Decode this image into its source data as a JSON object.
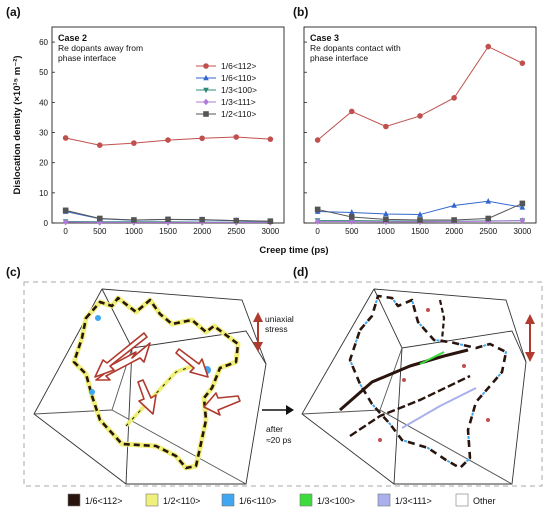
{
  "panels": {
    "a": {
      "label": "(a)",
      "title": "Case 2",
      "subtitle_lines": [
        "Re dopants away from",
        "phase interface"
      ]
    },
    "b": {
      "label": "(b)",
      "title": "Case 3",
      "subtitle_lines": [
        "Re dopants contact with",
        "phase interface"
      ]
    },
    "c": {
      "label": "(c)"
    },
    "d": {
      "label": "(d)"
    }
  },
  "colors": {
    "s1": "#c0504d",
    "s2": "#3366cc",
    "s3": "#2e8b7a",
    "s4": "#b07ad8",
    "s5": "#555555",
    "arrow_red": "#b03a2e",
    "frame": "#999999"
  },
  "chart_data": [
    {
      "type": "line",
      "panel": "a",
      "x": [
        0,
        500,
        1000,
        1500,
        2000,
        2500,
        3000
      ],
      "xlim": [
        -200,
        3200
      ],
      "ylim": [
        0,
        65
      ],
      "xticks": [
        "0",
        "500",
        "1000",
        "1500",
        "2000",
        "2500",
        "3000"
      ],
      "yticks": [
        "0",
        "10",
        "20",
        "30",
        "40",
        "50",
        "60"
      ],
      "series": [
        {
          "name": "1/6<112>",
          "marker": "circle",
          "values": [
            28.2,
            25.8,
            26.5,
            27.5,
            28.1,
            28.5,
            27.8
          ]
        },
        {
          "name": "1/6<110>",
          "marker": "triangle-up",
          "values": [
            3.8,
            1.4,
            0.9,
            1.2,
            1.0,
            0.8,
            0.5
          ]
        },
        {
          "name": "1/3<100>",
          "marker": "triangle-down",
          "values": [
            0.5,
            0.4,
            0.4,
            0.4,
            0.3,
            0.3,
            0.3
          ]
        },
        {
          "name": "1/3<111>",
          "marker": "diamond",
          "values": [
            0.3,
            0.2,
            0.2,
            0.2,
            0.2,
            0.2,
            0.2
          ]
        },
        {
          "name": "1/2<110>",
          "marker": "square",
          "values": [
            4.2,
            1.5,
            1.0,
            1.2,
            1.1,
            0.8,
            0.6
          ]
        }
      ],
      "legend_position": "top-right"
    },
    {
      "type": "line",
      "panel": "b",
      "x": [
        0,
        500,
        1000,
        1500,
        2000,
        2500,
        3000
      ],
      "xlim": [
        -200,
        3200
      ],
      "ylim": [
        0,
        65
      ],
      "xticks": [
        "0",
        "500",
        "1000",
        "1500",
        "2000",
        "2500",
        "3000"
      ],
      "series": [
        {
          "name": "1/6<112>",
          "marker": "circle",
          "values": [
            27.5,
            37.0,
            32.0,
            35.5,
            41.5,
            58.5,
            53.0
          ]
        },
        {
          "name": "1/6<110>",
          "marker": "triangle-up",
          "values": [
            3.8,
            3.5,
            3.0,
            2.8,
            5.8,
            7.2,
            5.2
          ]
        },
        {
          "name": "1/3<100>",
          "marker": "triangle-down",
          "values": [
            0.8,
            0.8,
            0.7,
            0.6,
            0.6,
            0.7,
            0.8
          ]
        },
        {
          "name": "1/3<111>",
          "marker": "diamond",
          "values": [
            0.5,
            0.5,
            0.4,
            0.4,
            0.5,
            0.6,
            0.8
          ]
        },
        {
          "name": "1/2<110>",
          "marker": "square",
          "values": [
            4.5,
            2.0,
            1.2,
            1.0,
            1.0,
            1.5,
            6.5
          ]
        }
      ]
    }
  ],
  "y_axis_label": "Dislocation density (×10¹⁵ m⁻²)",
  "x_axis_label": "Creep time (ps)",
  "annotations": {
    "stress": [
      "uniaxial",
      "stress"
    ],
    "after": [
      "after",
      "≈20 ps"
    ]
  },
  "bottom_legend": [
    {
      "label": "1/6<112>",
      "color": "#2a140e"
    },
    {
      "label": "1/2<110>",
      "color": "#eef07a"
    },
    {
      "label": "1/6<110>",
      "color": "#3fa7f0"
    },
    {
      "label": "1/3<100>",
      "color": "#3ddc3d"
    },
    {
      "label": "1/3<111>",
      "color": "#aab0ee"
    },
    {
      "label": "Other",
      "color": "#ffffff"
    }
  ]
}
